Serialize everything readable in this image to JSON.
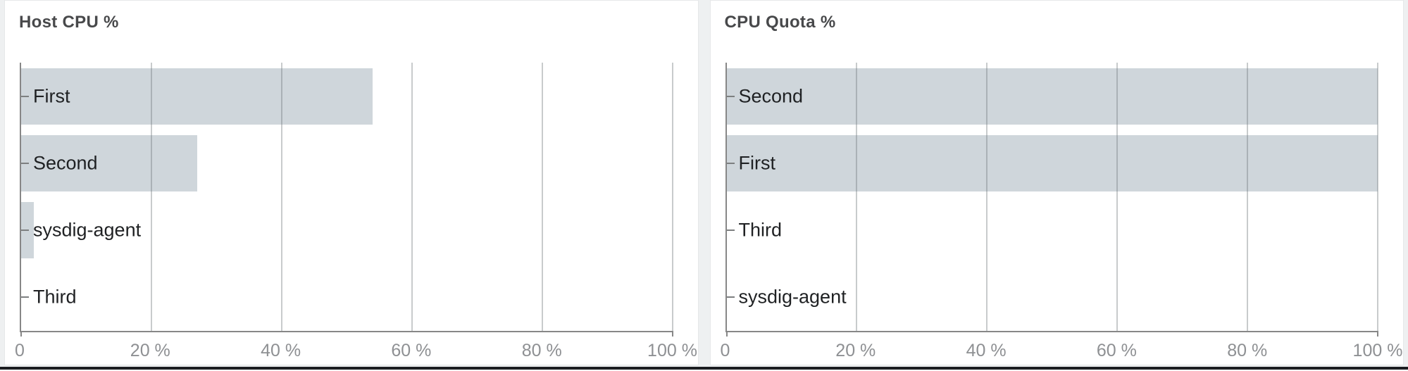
{
  "colors": {
    "page_bg": "#eef0f1",
    "panel_bg": "#ffffff",
    "panel_border": "#e6e8e9",
    "bar": "#cfd6db",
    "gridline": "rgba(110,117,122,0.38)",
    "axis": "#878787",
    "tick_text": "#8e9093",
    "category_text": "#1f2123",
    "title_text": "#48494b",
    "bottom_line": "#1b1d21"
  },
  "chart_data": [
    {
      "type": "bar",
      "orientation": "horizontal",
      "title": "Host CPU %",
      "categories": [
        "First",
        "Second",
        "sysdig-agent",
        "Third"
      ],
      "values": [
        54,
        27,
        2,
        0
      ],
      "unit": "%",
      "xlim": [
        0,
        100
      ],
      "x_ticks": [
        {
          "value": 0,
          "label": "0"
        },
        {
          "value": 20,
          "label": "20 %"
        },
        {
          "value": 40,
          "label": "40 %"
        },
        {
          "value": 60,
          "label": "60 %"
        },
        {
          "value": 80,
          "label": "80 %"
        },
        {
          "value": 100,
          "label": "100 %"
        }
      ],
      "grid": true,
      "legend": false,
      "bar_color": "#cfd6db"
    },
    {
      "type": "bar",
      "orientation": "horizontal",
      "title": "CPU Quota %",
      "categories": [
        "Second",
        "First",
        "Third",
        "sysdig-agent"
      ],
      "values": [
        100,
        100,
        0,
        0
      ],
      "unit": "%",
      "xlim": [
        0,
        100
      ],
      "x_ticks": [
        {
          "value": 0,
          "label": "0"
        },
        {
          "value": 20,
          "label": "20 %"
        },
        {
          "value": 40,
          "label": "40 %"
        },
        {
          "value": 60,
          "label": "60 %"
        },
        {
          "value": 80,
          "label": "80 %"
        },
        {
          "value": 100,
          "label": "100 %"
        }
      ],
      "grid": true,
      "legend": false,
      "bar_color": "#cfd6db"
    }
  ]
}
